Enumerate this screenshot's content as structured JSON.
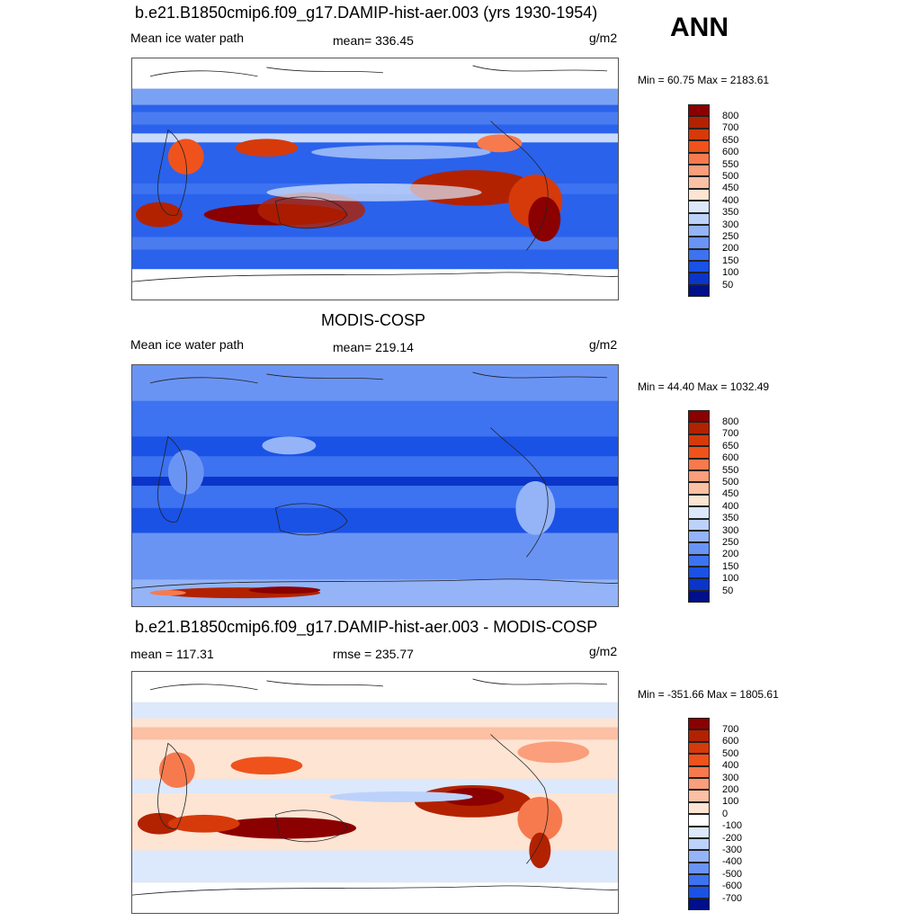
{
  "season": "ANN",
  "panels": [
    {
      "title": "b.e21.B1850cmip6.f09_g17.DAMIP-hist-aer.003 (yrs 1930-1954)",
      "left_label": "Mean ice water path",
      "center_label": "mean= 336.45",
      "units": "g/m2",
      "minmax": "Min =  60.75 Max = 2183.61",
      "colorbar": {
        "labels": [
          "800",
          "700",
          "650",
          "600",
          "550",
          "500",
          "450",
          "400",
          "350",
          "300",
          "250",
          "200",
          "150",
          "100",
          "50"
        ],
        "colors": [
          "#8b0000",
          "#b22200",
          "#d63a0a",
          "#f0521c",
          "#f77a4e",
          "#fa9e7b",
          "#fcc0a4",
          "#fde4d3",
          "#dce8fb",
          "#bcd2fa",
          "#94b4f7",
          "#6a94f4",
          "#3d72f0",
          "#1a52e6",
          "#0a35c8",
          "#000f8a"
        ]
      },
      "map": {
        "field": "model_ice_water_path",
        "mean": 336.45,
        "min": 60.75,
        "max": 2183.61
      }
    },
    {
      "title": "MODIS-COSP",
      "left_label": "Mean ice water path",
      "center_label": "mean= 219.14",
      "units": "g/m2",
      "minmax": "Min =  44.40 Max = 1032.49",
      "colorbar": {
        "labels": [
          "800",
          "700",
          "650",
          "600",
          "550",
          "500",
          "450",
          "400",
          "350",
          "300",
          "250",
          "200",
          "150",
          "100",
          "50"
        ],
        "colors": [
          "#8b0000",
          "#b22200",
          "#d63a0a",
          "#f0521c",
          "#f77a4e",
          "#fa9e7b",
          "#fcc0a4",
          "#fde4d3",
          "#dce8fb",
          "#bcd2fa",
          "#94b4f7",
          "#6a94f4",
          "#3d72f0",
          "#1a52e6",
          "#0a35c8",
          "#000f8a"
        ]
      },
      "map": {
        "field": "obs_ice_water_path",
        "mean": 219.14,
        "min": 44.4,
        "max": 1032.49
      }
    },
    {
      "title": "b.e21.B1850cmip6.f09_g17.DAMIP-hist-aer.003 - MODIS-COSP",
      "left_label": "mean = 117.31",
      "center_label": "rmse = 235.77",
      "units": "g/m2",
      "minmax": "Min = -351.66 Max = 1805.61",
      "colorbar": {
        "labels": [
          "700",
          "600",
          "500",
          "400",
          "300",
          "200",
          "100",
          "0",
          "-100",
          "-200",
          "-300",
          "-400",
          "-500",
          "-600",
          "-700"
        ],
        "colors": [
          "#8b0000",
          "#b22200",
          "#d63a0a",
          "#f0521c",
          "#f77a4e",
          "#fa9e7b",
          "#fcc0a4",
          "#fde4d3",
          "#ffffff",
          "#dce8fb",
          "#bcd2fa",
          "#94b4f7",
          "#6a94f4",
          "#3d72f0",
          "#1a52e6",
          "#000f8a"
        ]
      },
      "map": {
        "field": "difference",
        "mean": 117.31,
        "rmse": 235.77,
        "min": -351.66,
        "max": 1805.61
      }
    }
  ]
}
